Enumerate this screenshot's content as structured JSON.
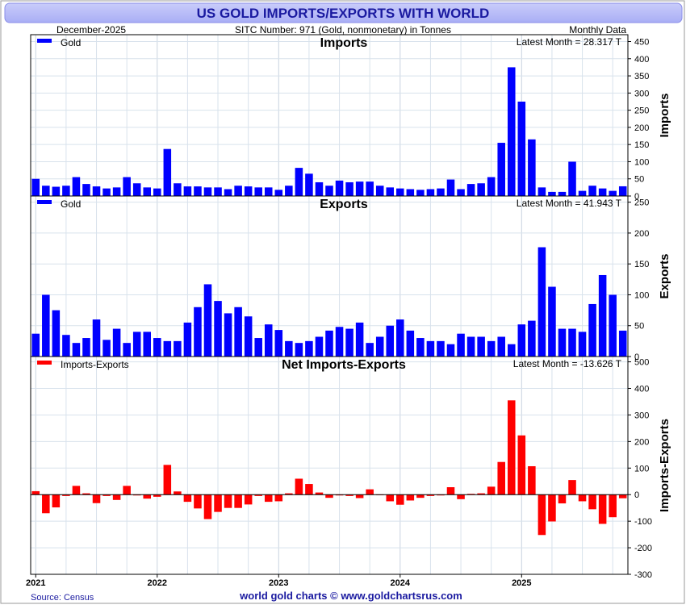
{
  "header": {
    "title": "US GOLD IMPORTS/EXPORTS WITH WORLD",
    "date": "December-2025",
    "subtitle": "SITC Number: 971 (Gold, nonmonetary) in Tonnes",
    "frequency": "Monthly Data"
  },
  "footer": {
    "source": "Source: Census",
    "credit": "world gold charts © www.goldchartsrus.com"
  },
  "colors": {
    "title_bar": "#b8bcf8",
    "title_text": "#1a1aa0",
    "imports": "#0000ff",
    "exports": "#0000ff",
    "net": "#ff0000",
    "grid": "#d8e2ec"
  },
  "chart_data": [
    {
      "type": "bar",
      "title": "Imports",
      "ylabel": "Imports",
      "legend": "Gold",
      "latest": "Latest Month = 28.317 T",
      "ylim": [
        0,
        470
      ],
      "yticks": [
        0,
        50,
        100,
        150,
        200,
        250,
        300,
        350,
        400,
        450
      ],
      "start": "2021-01",
      "values": [
        50,
        30,
        27,
        30,
        55,
        35,
        28,
        22,
        25,
        55,
        37,
        25,
        22,
        137,
        37,
        28,
        28,
        25,
        25,
        20,
        30,
        28,
        25,
        25,
        18,
        30,
        82,
        65,
        40,
        30,
        45,
        40,
        42,
        42,
        30,
        25,
        22,
        20,
        18,
        20,
        22,
        48,
        20,
        35,
        37,
        55,
        155,
        375,
        275,
        165,
        25,
        12,
        12,
        100,
        15,
        30,
        22,
        15,
        28.317
      ]
    },
    {
      "type": "bar",
      "title": "Exports",
      "ylabel": "Exports",
      "legend": "Gold",
      "latest": "Latest Month = 41.943 T",
      "ylim": [
        0,
        260
      ],
      "yticks": [
        0,
        50,
        100,
        150,
        200,
        250
      ],
      "start": "2021-01",
      "values": [
        37,
        100,
        75,
        35,
        22,
        30,
        60,
        27,
        45,
        22,
        40,
        40,
        30,
        25,
        25,
        55,
        80,
        117,
        90,
        70,
        80,
        65,
        30,
        52,
        43,
        25,
        22,
        25,
        32,
        42,
        48,
        45,
        55,
        22,
        32,
        50,
        60,
        42,
        30,
        25,
        25,
        20,
        37,
        32,
        32,
        25,
        32,
        20,
        52,
        58,
        177,
        113,
        45,
        45,
        40,
        85,
        132,
        100,
        41.943
      ]
    },
    {
      "type": "bar",
      "title": "Net Imports-Exports",
      "ylabel": "Imports-Exports",
      "legend": "Imports-Exports",
      "latest": "Latest Month = -13.626 T",
      "ylim": [
        -300,
        520
      ],
      "yticks": [
        -300,
        -200,
        -100,
        0,
        100,
        200,
        300,
        400,
        500
      ],
      "start": "2021-01",
      "values": [
        13,
        -70,
        -48,
        -5,
        33,
        5,
        -32,
        -5,
        -20,
        33,
        -3,
        -15,
        -8,
        112,
        12,
        -27,
        -52,
        -92,
        -65,
        -50,
        -50,
        -37,
        -5,
        -27,
        -25,
        5,
        60,
        40,
        8,
        -12,
        -3,
        -5,
        -13,
        20,
        -2,
        -25,
        -38,
        -22,
        -12,
        -5,
        -3,
        28,
        -17,
        3,
        5,
        30,
        123,
        355,
        223,
        107,
        -152,
        -101,
        -33,
        55,
        -25,
        -55,
        -110,
        -85,
        -13.626
      ]
    }
  ],
  "x_axis": {
    "labels": [
      "2021",
      "2022",
      "2023",
      "2024",
      "2025"
    ],
    "label_months": [
      0,
      12,
      24,
      36,
      48
    ]
  }
}
